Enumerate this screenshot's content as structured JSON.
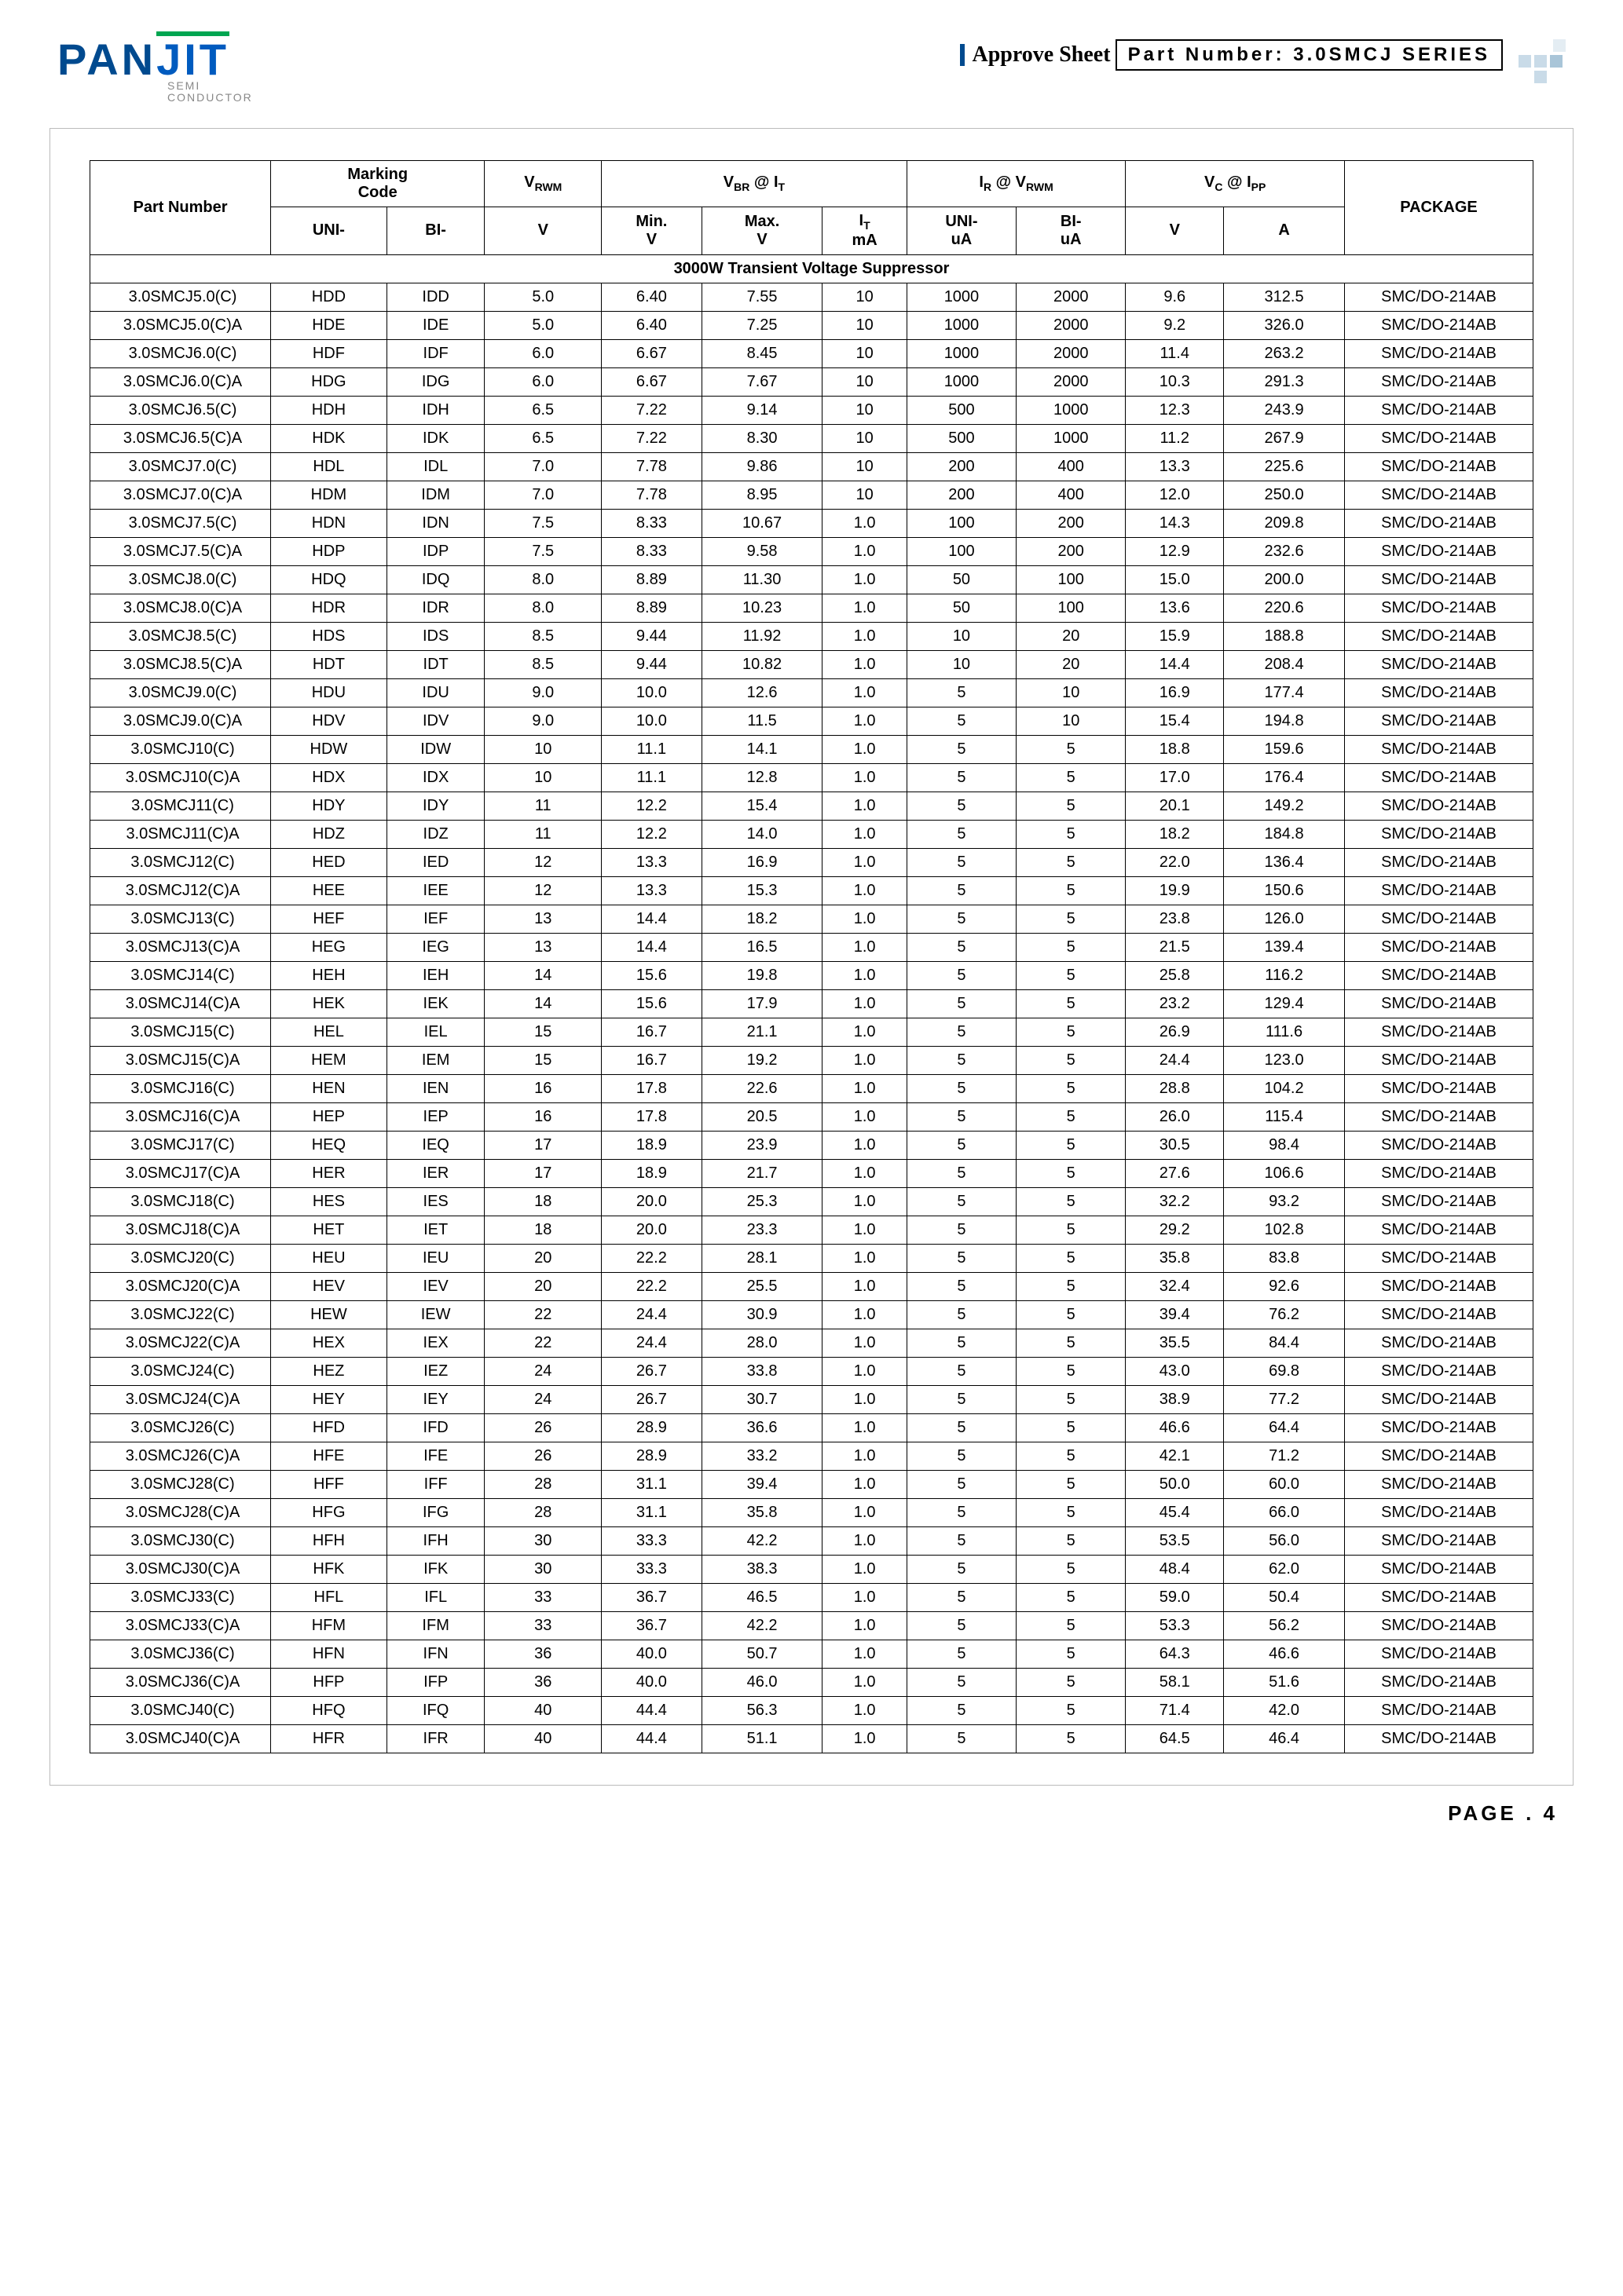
{
  "logo": {
    "text1": "PAN",
    "text2": "JIT",
    "sub1": "SEMI",
    "sub2": "CONDUCTOR"
  },
  "header": {
    "approve": "Approve Sheet",
    "partnum_label": "Part Number: 3.0SMCJ SERIES"
  },
  "columns": {
    "pn": "Part Number",
    "marking": "MarkingCode",
    "uni": "UNI-",
    "bi": "BI-",
    "vrwm": "VRWM",
    "v": "V",
    "vbr": "VBR @ IT",
    "min": "Min.",
    "max": "Max.",
    "it": "IT",
    "ma": "mA",
    "ir": "IR @ VRWM",
    "ua": "uA",
    "vc": "VC @ IPP",
    "a": "A",
    "package": "PACKAGE"
  },
  "section_title": "3000W Transient Voltage Suppressor",
  "rows": [
    [
      "3.0SMCJ5.0(C)",
      "HDD",
      "IDD",
      "5.0",
      "6.40",
      "7.55",
      "10",
      "1000",
      "2000",
      "9.6",
      "312.5",
      "SMC/DO-214AB"
    ],
    [
      "3.0SMCJ5.0(C)A",
      "HDE",
      "IDE",
      "5.0",
      "6.40",
      "7.25",
      "10",
      "1000",
      "2000",
      "9.2",
      "326.0",
      "SMC/DO-214AB"
    ],
    [
      "3.0SMCJ6.0(C)",
      "HDF",
      "IDF",
      "6.0",
      "6.67",
      "8.45",
      "10",
      "1000",
      "2000",
      "11.4",
      "263.2",
      "SMC/DO-214AB"
    ],
    [
      "3.0SMCJ6.0(C)A",
      "HDG",
      "IDG",
      "6.0",
      "6.67",
      "7.67",
      "10",
      "1000",
      "2000",
      "10.3",
      "291.3",
      "SMC/DO-214AB"
    ],
    [
      "3.0SMCJ6.5(C)",
      "HDH",
      "IDH",
      "6.5",
      "7.22",
      "9.14",
      "10",
      "500",
      "1000",
      "12.3",
      "243.9",
      "SMC/DO-214AB"
    ],
    [
      "3.0SMCJ6.5(C)A",
      "HDK",
      "IDK",
      "6.5",
      "7.22",
      "8.30",
      "10",
      "500",
      "1000",
      "11.2",
      "267.9",
      "SMC/DO-214AB"
    ],
    [
      "3.0SMCJ7.0(C)",
      "HDL",
      "IDL",
      "7.0",
      "7.78",
      "9.86",
      "10",
      "200",
      "400",
      "13.3",
      "225.6",
      "SMC/DO-214AB"
    ],
    [
      "3.0SMCJ7.0(C)A",
      "HDM",
      "IDM",
      "7.0",
      "7.78",
      "8.95",
      "10",
      "200",
      "400",
      "12.0",
      "250.0",
      "SMC/DO-214AB"
    ],
    [
      "3.0SMCJ7.5(C)",
      "HDN",
      "IDN",
      "7.5",
      "8.33",
      "10.67",
      "1.0",
      "100",
      "200",
      "14.3",
      "209.8",
      "SMC/DO-214AB"
    ],
    [
      "3.0SMCJ7.5(C)A",
      "HDP",
      "IDP",
      "7.5",
      "8.33",
      "9.58",
      "1.0",
      "100",
      "200",
      "12.9",
      "232.6",
      "SMC/DO-214AB"
    ],
    [
      "3.0SMCJ8.0(C)",
      "HDQ",
      "IDQ",
      "8.0",
      "8.89",
      "11.30",
      "1.0",
      "50",
      "100",
      "15.0",
      "200.0",
      "SMC/DO-214AB"
    ],
    [
      "3.0SMCJ8.0(C)A",
      "HDR",
      "IDR",
      "8.0",
      "8.89",
      "10.23",
      "1.0",
      "50",
      "100",
      "13.6",
      "220.6",
      "SMC/DO-214AB"
    ],
    [
      "3.0SMCJ8.5(C)",
      "HDS",
      "IDS",
      "8.5",
      "9.44",
      "11.92",
      "1.0",
      "10",
      "20",
      "15.9",
      "188.8",
      "SMC/DO-214AB"
    ],
    [
      "3.0SMCJ8.5(C)A",
      "HDT",
      "IDT",
      "8.5",
      "9.44",
      "10.82",
      "1.0",
      "10",
      "20",
      "14.4",
      "208.4",
      "SMC/DO-214AB"
    ],
    [
      "3.0SMCJ9.0(C)",
      "HDU",
      "IDU",
      "9.0",
      "10.0",
      "12.6",
      "1.0",
      "5",
      "10",
      "16.9",
      "177.4",
      "SMC/DO-214AB"
    ],
    [
      "3.0SMCJ9.0(C)A",
      "HDV",
      "IDV",
      "9.0",
      "10.0",
      "11.5",
      "1.0",
      "5",
      "10",
      "15.4",
      "194.8",
      "SMC/DO-214AB"
    ],
    [
      "3.0SMCJ10(C)",
      "HDW",
      "IDW",
      "10",
      "11.1",
      "14.1",
      "1.0",
      "5",
      "5",
      "18.8",
      "159.6",
      "SMC/DO-214AB"
    ],
    [
      "3.0SMCJ10(C)A",
      "HDX",
      "IDX",
      "10",
      "11.1",
      "12.8",
      "1.0",
      "5",
      "5",
      "17.0",
      "176.4",
      "SMC/DO-214AB"
    ],
    [
      "3.0SMCJ11(C)",
      "HDY",
      "IDY",
      "11",
      "12.2",
      "15.4",
      "1.0",
      "5",
      "5",
      "20.1",
      "149.2",
      "SMC/DO-214AB"
    ],
    [
      "3.0SMCJ11(C)A",
      "HDZ",
      "IDZ",
      "11",
      "12.2",
      "14.0",
      "1.0",
      "5",
      "5",
      "18.2",
      "184.8",
      "SMC/DO-214AB"
    ],
    [
      "3.0SMCJ12(C)",
      "HED",
      "IED",
      "12",
      "13.3",
      "16.9",
      "1.0",
      "5",
      "5",
      "22.0",
      "136.4",
      "SMC/DO-214AB"
    ],
    [
      "3.0SMCJ12(C)A",
      "HEE",
      "IEE",
      "12",
      "13.3",
      "15.3",
      "1.0",
      "5",
      "5",
      "19.9",
      "150.6",
      "SMC/DO-214AB"
    ],
    [
      "3.0SMCJ13(C)",
      "HEF",
      "IEF",
      "13",
      "14.4",
      "18.2",
      "1.0",
      "5",
      "5",
      "23.8",
      "126.0",
      "SMC/DO-214AB"
    ],
    [
      "3.0SMCJ13(C)A",
      "HEG",
      "IEG",
      "13",
      "14.4",
      "16.5",
      "1.0",
      "5",
      "5",
      "21.5",
      "139.4",
      "SMC/DO-214AB"
    ],
    [
      "3.0SMCJ14(C)",
      "HEH",
      "IEH",
      "14",
      "15.6",
      "19.8",
      "1.0",
      "5",
      "5",
      "25.8",
      "116.2",
      "SMC/DO-214AB"
    ],
    [
      "3.0SMCJ14(C)A",
      "HEK",
      "IEK",
      "14",
      "15.6",
      "17.9",
      "1.0",
      "5",
      "5",
      "23.2",
      "129.4",
      "SMC/DO-214AB"
    ],
    [
      "3.0SMCJ15(C)",
      "HEL",
      "IEL",
      "15",
      "16.7",
      "21.1",
      "1.0",
      "5",
      "5",
      "26.9",
      "111.6",
      "SMC/DO-214AB"
    ],
    [
      "3.0SMCJ15(C)A",
      "HEM",
      "IEM",
      "15",
      "16.7",
      "19.2",
      "1.0",
      "5",
      "5",
      "24.4",
      "123.0",
      "SMC/DO-214AB"
    ],
    [
      "3.0SMCJ16(C)",
      "HEN",
      "IEN",
      "16",
      "17.8",
      "22.6",
      "1.0",
      "5",
      "5",
      "28.8",
      "104.2",
      "SMC/DO-214AB"
    ],
    [
      "3.0SMCJ16(C)A",
      "HEP",
      "IEP",
      "16",
      "17.8",
      "20.5",
      "1.0",
      "5",
      "5",
      "26.0",
      "115.4",
      "SMC/DO-214AB"
    ],
    [
      "3.0SMCJ17(C)",
      "HEQ",
      "IEQ",
      "17",
      "18.9",
      "23.9",
      "1.0",
      "5",
      "5",
      "30.5",
      "98.4",
      "SMC/DO-214AB"
    ],
    [
      "3.0SMCJ17(C)A",
      "HER",
      "IER",
      "17",
      "18.9",
      "21.7",
      "1.0",
      "5",
      "5",
      "27.6",
      "106.6",
      "SMC/DO-214AB"
    ],
    [
      "3.0SMCJ18(C)",
      "HES",
      "IES",
      "18",
      "20.0",
      "25.3",
      "1.0",
      "5",
      "5",
      "32.2",
      "93.2",
      "SMC/DO-214AB"
    ],
    [
      "3.0SMCJ18(C)A",
      "HET",
      "IET",
      "18",
      "20.0",
      "23.3",
      "1.0",
      "5",
      "5",
      "29.2",
      "102.8",
      "SMC/DO-214AB"
    ],
    [
      "3.0SMCJ20(C)",
      "HEU",
      "IEU",
      "20",
      "22.2",
      "28.1",
      "1.0",
      "5",
      "5",
      "35.8",
      "83.8",
      "SMC/DO-214AB"
    ],
    [
      "3.0SMCJ20(C)A",
      "HEV",
      "IEV",
      "20",
      "22.2",
      "25.5",
      "1.0",
      "5",
      "5",
      "32.4",
      "92.6",
      "SMC/DO-214AB"
    ],
    [
      "3.0SMCJ22(C)",
      "HEW",
      "IEW",
      "22",
      "24.4",
      "30.9",
      "1.0",
      "5",
      "5",
      "39.4",
      "76.2",
      "SMC/DO-214AB"
    ],
    [
      "3.0SMCJ22(C)A",
      "HEX",
      "IEX",
      "22",
      "24.4",
      "28.0",
      "1.0",
      "5",
      "5",
      "35.5",
      "84.4",
      "SMC/DO-214AB"
    ],
    [
      "3.0SMCJ24(C)",
      "HEZ",
      "IEZ",
      "24",
      "26.7",
      "33.8",
      "1.0",
      "5",
      "5",
      "43.0",
      "69.8",
      "SMC/DO-214AB"
    ],
    [
      "3.0SMCJ24(C)A",
      "HEY",
      "IEY",
      "24",
      "26.7",
      "30.7",
      "1.0",
      "5",
      "5",
      "38.9",
      "77.2",
      "SMC/DO-214AB"
    ],
    [
      "3.0SMCJ26(C)",
      "HFD",
      "IFD",
      "26",
      "28.9",
      "36.6",
      "1.0",
      "5",
      "5",
      "46.6",
      "64.4",
      "SMC/DO-214AB"
    ],
    [
      "3.0SMCJ26(C)A",
      "HFE",
      "IFE",
      "26",
      "28.9",
      "33.2",
      "1.0",
      "5",
      "5",
      "42.1",
      "71.2",
      "SMC/DO-214AB"
    ],
    [
      "3.0SMCJ28(C)",
      "HFF",
      "IFF",
      "28",
      "31.1",
      "39.4",
      "1.0",
      "5",
      "5",
      "50.0",
      "60.0",
      "SMC/DO-214AB"
    ],
    [
      "3.0SMCJ28(C)A",
      "HFG",
      "IFG",
      "28",
      "31.1",
      "35.8",
      "1.0",
      "5",
      "5",
      "45.4",
      "66.0",
      "SMC/DO-214AB"
    ],
    [
      "3.0SMCJ30(C)",
      "HFH",
      "IFH",
      "30",
      "33.3",
      "42.2",
      "1.0",
      "5",
      "5",
      "53.5",
      "56.0",
      "SMC/DO-214AB"
    ],
    [
      "3.0SMCJ30(C)A",
      "HFK",
      "IFK",
      "30",
      "33.3",
      "38.3",
      "1.0",
      "5",
      "5",
      "48.4",
      "62.0",
      "SMC/DO-214AB"
    ],
    [
      "3.0SMCJ33(C)",
      "HFL",
      "IFL",
      "33",
      "36.7",
      "46.5",
      "1.0",
      "5",
      "5",
      "59.0",
      "50.4",
      "SMC/DO-214AB"
    ],
    [
      "3.0SMCJ33(C)A",
      "HFM",
      "IFM",
      "33",
      "36.7",
      "42.2",
      "1.0",
      "5",
      "5",
      "53.3",
      "56.2",
      "SMC/DO-214AB"
    ],
    [
      "3.0SMCJ36(C)",
      "HFN",
      "IFN",
      "36",
      "40.0",
      "50.7",
      "1.0",
      "5",
      "5",
      "64.3",
      "46.6",
      "SMC/DO-214AB"
    ],
    [
      "3.0SMCJ36(C)A",
      "HFP",
      "IFP",
      "36",
      "40.0",
      "46.0",
      "1.0",
      "5",
      "5",
      "58.1",
      "51.6",
      "SMC/DO-214AB"
    ],
    [
      "3.0SMCJ40(C)",
      "HFQ",
      "IFQ",
      "40",
      "44.4",
      "56.3",
      "1.0",
      "5",
      "5",
      "71.4",
      "42.0",
      "SMC/DO-214AB"
    ],
    [
      "3.0SMCJ40(C)A",
      "HFR",
      "IFR",
      "40",
      "44.4",
      "51.1",
      "1.0",
      "5",
      "5",
      "64.5",
      "46.4",
      "SMC/DO-214AB"
    ]
  ],
  "footer": "PAGE . 4"
}
